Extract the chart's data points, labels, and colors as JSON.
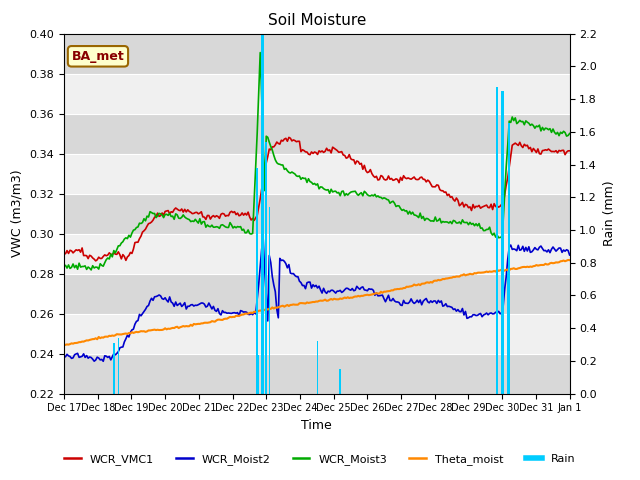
{
  "title": "Soil Moisture",
  "xlabel": "Time",
  "ylabel_left": "VWC (m3/m3)",
  "ylabel_right": "Rain (mm)",
  "ylim_left": [
    0.22,
    0.4
  ],
  "ylim_right": [
    0.0,
    2.2
  ],
  "yticks_left": [
    0.22,
    0.24,
    0.26,
    0.28,
    0.3,
    0.32,
    0.34,
    0.36,
    0.38,
    0.4
  ],
  "yticks_right": [
    0.0,
    0.2,
    0.4,
    0.6,
    0.8,
    1.0,
    1.2,
    1.4,
    1.6,
    1.8,
    2.0,
    2.2
  ],
  "xtick_labels": [
    "Dec 17",
    "Dec 18",
    "Dec 19",
    "Dec 20",
    "Dec 21",
    "Dec 22",
    "Dec 23",
    "Dec 24",
    "Dec 25",
    "Dec 26",
    "Dec 27",
    "Dec 28",
    "Dec 29",
    "Dec 30",
    "Dec 31",
    "Jan 1"
  ],
  "annotation_text": "BA_met",
  "colors": {
    "WCR_VMC1": "#cc0000",
    "WCR_Moist2": "#0000cc",
    "WCR_Moist3": "#00aa00",
    "Theta_moist": "#ff8800",
    "Rain": "#00ccff",
    "bg_light": "#f0f0f0",
    "bg_dark": "#d8d8d8",
    "bg_outer": "#ffffff",
    "grid": "#ffffff"
  },
  "n_points": 336
}
